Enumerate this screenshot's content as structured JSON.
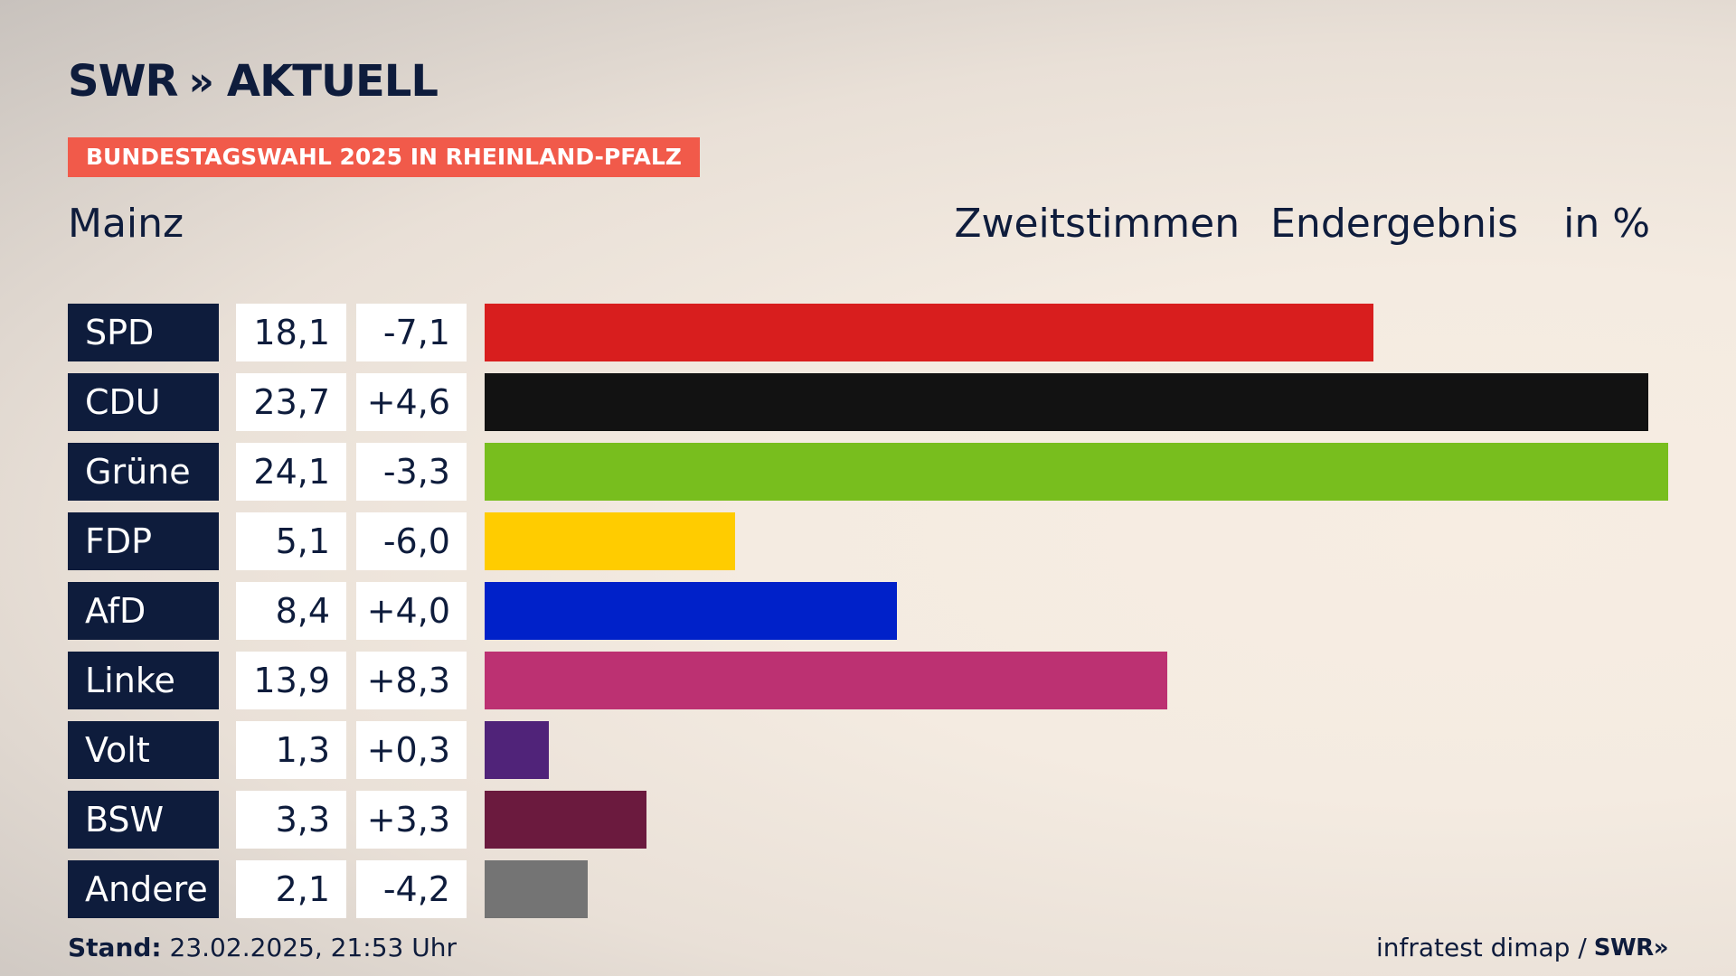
{
  "brand": {
    "name": "SWR",
    "chevrons": "»",
    "suffix": "AKTUELL"
  },
  "tag": "BUNDESTAGSWAHL 2025 IN RHEINLAND-PFALZ",
  "header": {
    "place": "Mainz",
    "vote_type": "Zweitstimmen",
    "status": "Endergebnis",
    "unit": "in %"
  },
  "footer": {
    "stand_label": "Stand:",
    "stand_value": "23.02.2025, 21:53 Uhr",
    "source": "infratest dimap /",
    "source_brand": "SWR»"
  },
  "chart_data": {
    "type": "bar",
    "orientation": "horizontal",
    "title": "Mainz – Zweitstimmen Endergebnis in %",
    "categories": [
      "SPD",
      "CDU",
      "Grüne",
      "FDP",
      "AfD",
      "Linke",
      "Volt",
      "BSW",
      "Andere"
    ],
    "values": [
      18.1,
      23.7,
      24.1,
      5.1,
      8.4,
      13.9,
      1.3,
      3.3,
      2.1
    ],
    "value_labels": [
      "18,1",
      "23,7",
      "24,1",
      "5,1",
      "8,4",
      "13,9",
      "1,3",
      "3,3",
      "2,1"
    ],
    "diff_labels": [
      "-7,1",
      "+4,6",
      "-3,3",
      "-6,0",
      "+4,0",
      "+8,3",
      "+0,3",
      "+3,3",
      "-4,2"
    ],
    "colors": [
      "#d81e1e",
      "#121212",
      "#78be1e",
      "#ffcc00",
      "#0021c9",
      "#bc3172",
      "#502379",
      "#6b1a3e",
      "#747474"
    ],
    "xlim": [
      0,
      24.1
    ],
    "xlabel": "",
    "ylabel": ""
  }
}
